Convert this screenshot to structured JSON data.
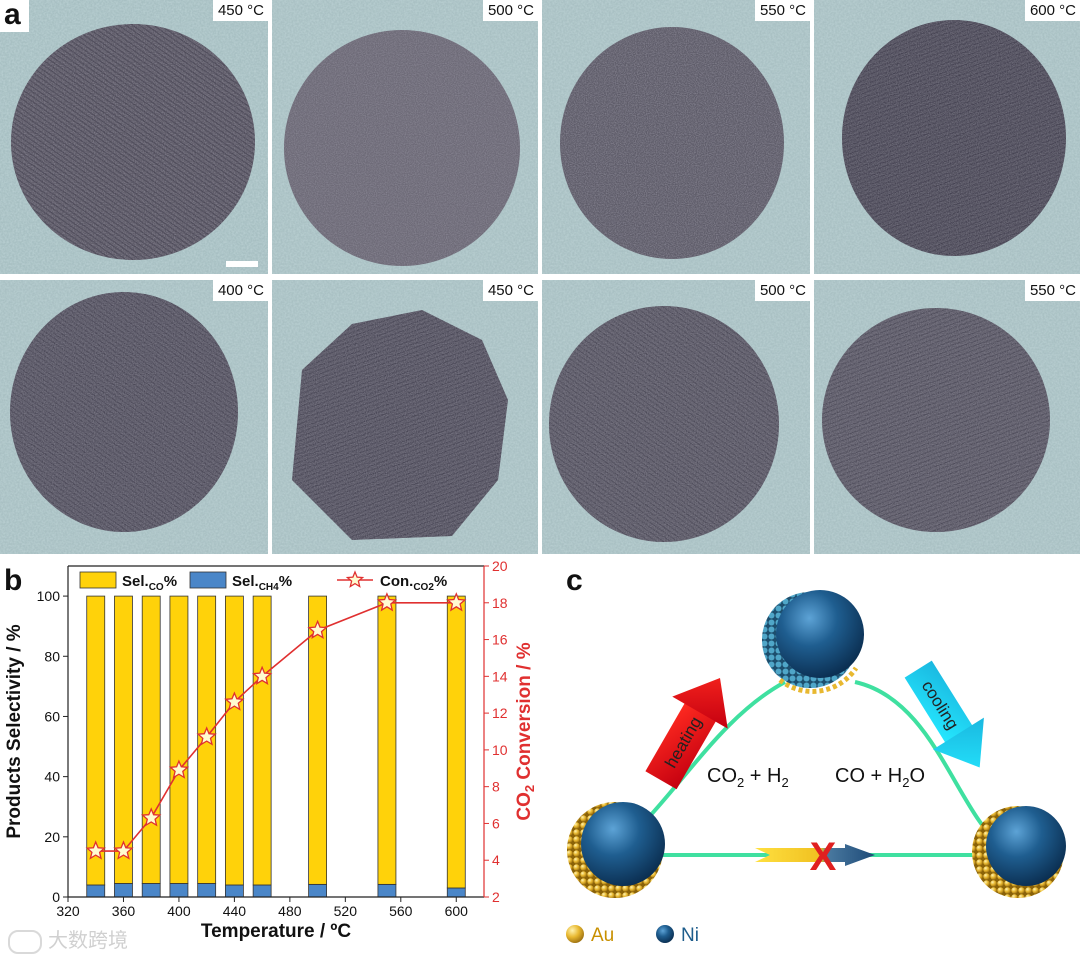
{
  "panel_a": {
    "label": "a",
    "rows": [
      {
        "tiles": [
          {
            "temp": "450 °C"
          },
          {
            "temp": "500 °C"
          },
          {
            "temp": "550 °C"
          },
          {
            "temp": "600 °C"
          }
        ]
      },
      {
        "tiles": [
          {
            "temp": "400 °C"
          },
          {
            "temp": "450 °C"
          },
          {
            "temp": "500 °C"
          },
          {
            "temp": "550 °C"
          }
        ]
      }
    ]
  },
  "panel_b": {
    "label": "b",
    "chart_data": {
      "type": "bar",
      "xlabel": "Temperature / ºC",
      "ylabel": "Products Selectivity / %",
      "y2label": "CO2 Conversion / %",
      "xlim": [
        320,
        620
      ],
      "ylim": [
        0,
        110
      ],
      "y2lim": [
        2,
        20
      ],
      "xticks": [
        320,
        360,
        400,
        440,
        480,
        520,
        560,
        600
      ],
      "yticks": [
        0,
        20,
        40,
        60,
        80,
        100
      ],
      "y2ticks": [
        2,
        4,
        6,
        8,
        10,
        12,
        14,
        16,
        18,
        20
      ],
      "x": [
        340,
        360,
        380,
        400,
        420,
        440,
        460,
        500,
        550,
        600
      ],
      "series": [
        {
          "name": "Sel.CO%",
          "color": "#FFD20A",
          "values": [
            96,
            95.5,
            95.5,
            95.5,
            95.5,
            96,
            96,
            95.8,
            95.8,
            97
          ]
        },
        {
          "name": "Sel.CH4%",
          "color": "#4A86C8",
          "values": [
            4,
            4.5,
            4.5,
            4.5,
            4.5,
            4,
            4,
            4.2,
            4.2,
            3
          ]
        },
        {
          "name": "Con.CO2%",
          "color": "#E03030",
          "axis": "right",
          "values": [
            4.5,
            4.5,
            6.3,
            8.9,
            10.7,
            12.6,
            14.0,
            16.5,
            18.0,
            18.0
          ]
        }
      ],
      "legend": [
        "Sel.CO%",
        "Sel.CH4%",
        "Con.CO2%"
      ],
      "legend_position": "top"
    }
  },
  "panel_c": {
    "label": "c",
    "heating_label": "heating",
    "cooling_label": "cooling",
    "reactants": "CO2 + H2",
    "products": "CO + H2O",
    "blocked_mark": "X",
    "legend": [
      {
        "label": "Au",
        "color": "#E8B830"
      },
      {
        "label": "Ni",
        "color": "#1E5D8C"
      }
    ]
  },
  "watermark": "大数跨境"
}
